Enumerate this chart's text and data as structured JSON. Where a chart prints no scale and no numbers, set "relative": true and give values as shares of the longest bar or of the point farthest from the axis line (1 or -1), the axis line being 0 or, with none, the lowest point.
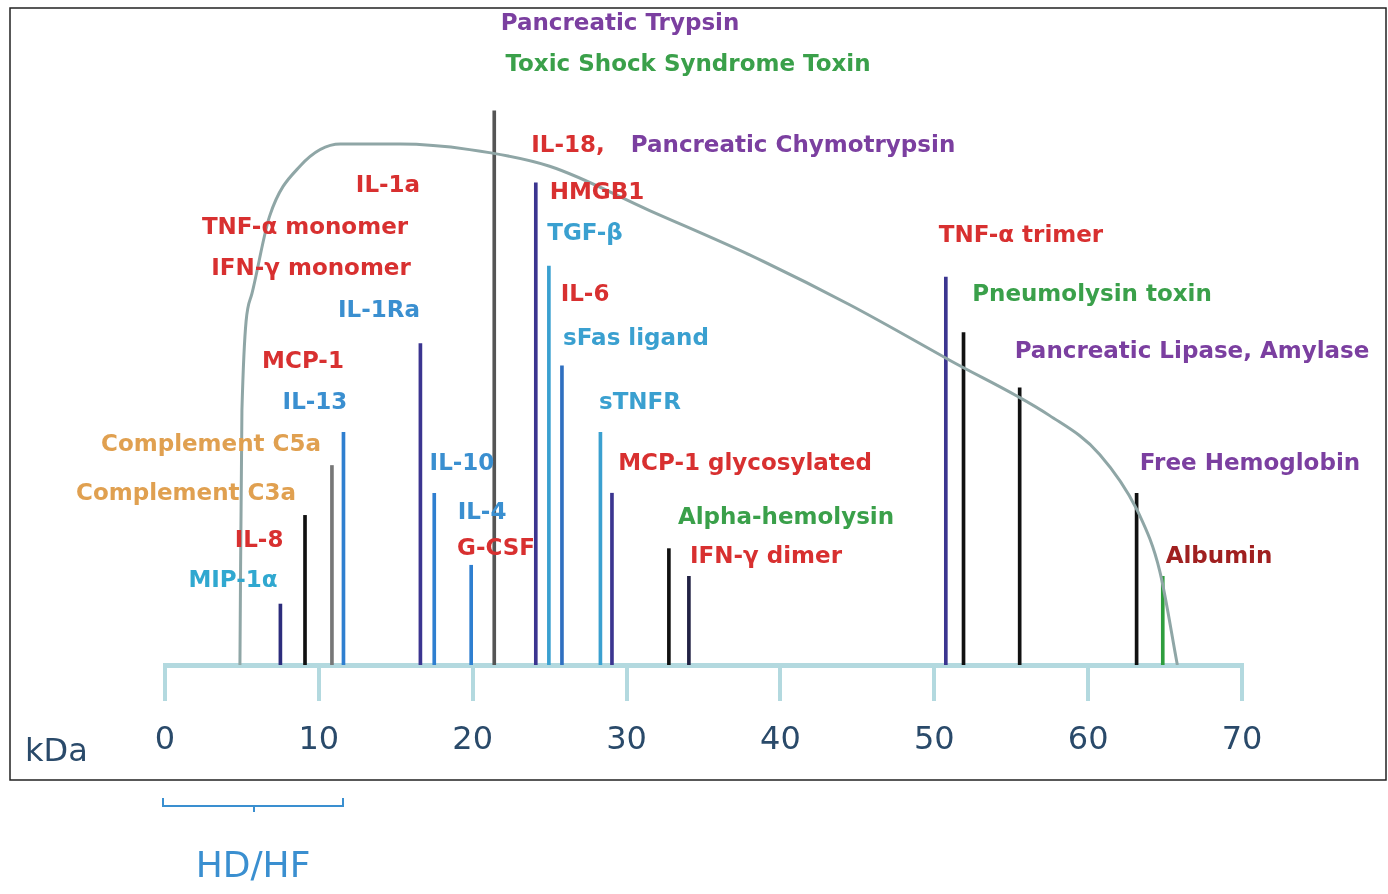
{
  "chart_data": {
    "type": "bar",
    "relative": true,
    "xlabel": "kDa",
    "xlim": [
      0,
      70
    ],
    "xticks": [
      0,
      10,
      20,
      30,
      40,
      50,
      60,
      70
    ],
    "grid": false,
    "legend": false,
    "series": [
      {
        "x": [
          7.5,
          9.1,
          10.85,
          11.6,
          16.6,
          17.5,
          19.9,
          21.4,
          24.1,
          24.95,
          25.8,
          28.3,
          29.05,
          32.75,
          34.05,
          50.75,
          51.9,
          55.55,
          63.15,
          64.85
        ],
        "values": [
          0.11,
          0.27,
          0.36,
          0.42,
          0.58,
          0.31,
          0.18,
          1,
          0.87,
          0.72,
          0.54,
          0.42,
          0.31,
          0.21,
          0.16,
          0.7,
          0.6,
          0.5,
          0.31,
          0.16
        ],
        "colors": [
          "#2c2c7c",
          "#111111",
          "#777777",
          "#2f7fd0",
          "#3b3590",
          "#2f7fd0",
          "#2f7fd0",
          "#555555",
          "#3b3590",
          "#3aa0d0",
          "#2f6fc0",
          "#3aa0d0",
          "#3b3590",
          "#111111",
          "#222244",
          "#3b3590",
          "#111111",
          "#111111",
          "#111111",
          "#2e9e3e"
        ]
      },
      {
        "type": "line",
        "color": "#8fa6a6",
        "marker": "none",
        "x": [
          4.87,
          5.0,
          5.65,
          6.8,
          8.77,
          11.4,
          15.3,
          19.8,
          25,
          31.5,
          38,
          44.5,
          51,
          57.5,
          60.75,
          63.35,
          64.65,
          65.8
        ],
        "values": [
          0,
          0.46,
          0.67,
          0.81,
          0.9,
          0.94,
          0.94,
          0.93,
          0.9,
          0.82,
          0.74,
          0.65,
          0.55,
          0.45,
          0.38,
          0.27,
          0.17,
          0
        ]
      }
    ],
    "annotations": [
      "Pancreatic Trypsin",
      "Toxic Shock Syndrome Toxin",
      "IL-18,",
      "Pancreatic Chymotrypsin",
      "IL-1a",
      "TNF-α monomer",
      "IFN-γ monomer",
      "IL-1Ra",
      "MCP-1",
      "IL-13",
      "Complement C5a",
      "Complement C3a",
      "IL-8",
      "MIP-1α",
      "IL-10",
      "IL-4",
      "G-CSF",
      "HMGB1",
      "TGF-β",
      "IL-6",
      "sFas ligand",
      "sTNFR",
      "MCP-1 glycosylated",
      "Alpha-hemolysin",
      "IFN-γ dimer",
      "TNF-α trimer",
      "Pneumolysin toxin",
      "Pancreatic Lipase, Amylase",
      "Free Hemoglobin",
      "Albumin",
      "HD/HF"
    ]
  }
}
